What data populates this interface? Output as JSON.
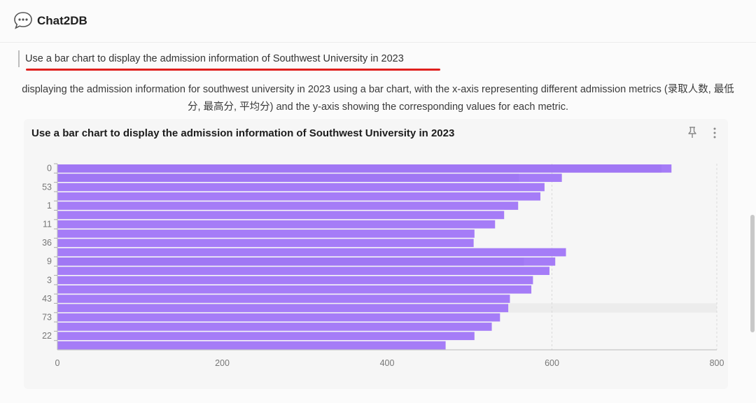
{
  "app": {
    "title": "Chat2DB",
    "logo_icon": "chat-bubble-icon"
  },
  "conversation": {
    "query": "Use a bar chart to display the admission information of Southwest University in 2023",
    "description": "displaying the admission information for southwest university in 2023 using a bar chart, with the x-axis representing different admission metrics (录取人数, 最低分, 最高分, 平均分) and the y-axis showing the corresponding values for each metric."
  },
  "chart_card": {
    "pin_icon": "pin-icon",
    "more_icon": "more-vertical-icon"
  },
  "colors": {
    "bar": "#a57cf7",
    "bar_shade": "#9d74f1",
    "highlight": "#ececec",
    "underline": "#e0201e"
  },
  "chart_data": {
    "type": "bar",
    "orientation": "horizontal",
    "title": "Use a bar chart to display the admission information of Southwest University in 2023",
    "categories": [
      "0",
      "",
      "53",
      "",
      "1",
      "",
      "11",
      "",
      "36",
      "",
      "9",
      "",
      "3",
      "",
      "43",
      "",
      "73",
      "",
      "22",
      ""
    ],
    "values": [
      745,
      612,
      591,
      586,
      559,
      542,
      531,
      506,
      505,
      617,
      604,
      597,
      577,
      575,
      549,
      547,
      537,
      527,
      506,
      471
    ],
    "shade_values": [
      733,
      560,
      0,
      0,
      0,
      0,
      0,
      0,
      0,
      0,
      566,
      0,
      0,
      0,
      0,
      0,
      0,
      0,
      0,
      0
    ],
    "highlighted_category_index": 15,
    "xlim": [
      0,
      800
    ],
    "xticks": [
      "0",
      "200",
      "400",
      "600",
      "800"
    ],
    "grid": "vertical-dashed",
    "xlabel": "",
    "ylabel": ""
  }
}
